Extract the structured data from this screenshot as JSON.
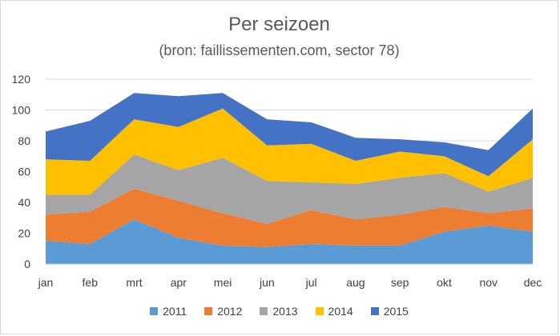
{
  "chart_data": {
    "type": "area",
    "stacked": true,
    "title": "Per seizoen",
    "subtitle": "(bron: faillissementen.com, sector 78)",
    "categories": [
      "jan",
      "feb",
      "mrt",
      "apr",
      "mei",
      "jun",
      "jul",
      "aug",
      "sep",
      "okt",
      "nov",
      "dec"
    ],
    "y_ticks": [
      0,
      20,
      40,
      60,
      80,
      100,
      120
    ],
    "ylim": [
      0,
      120
    ],
    "grid": "horizontal",
    "legend_position": "bottom",
    "series": [
      {
        "name": "2011",
        "color": "#5b9bd5",
        "values": [
          15,
          13,
          29,
          17,
          12,
          11,
          13,
          12,
          12,
          21,
          25,
          21
        ]
      },
      {
        "name": "2012",
        "color": "#ed7d31",
        "values": [
          17,
          21,
          20,
          24,
          21,
          15,
          22,
          17,
          20,
          16,
          8,
          15
        ]
      },
      {
        "name": "2013",
        "color": "#a5a5a5",
        "values": [
          13,
          11,
          22,
          20,
          36,
          28,
          18,
          23,
          24,
          22,
          14,
          20
        ]
      },
      {
        "name": "2014",
        "color": "#ffc000",
        "values": [
          23,
          22,
          23,
          28,
          32,
          23,
          25,
          15,
          17,
          11,
          10,
          25
        ]
      },
      {
        "name": "2015",
        "color": "#4472c4",
        "values": [
          18,
          26,
          17,
          20,
          10,
          17,
          14,
          15,
          8,
          9,
          17,
          20
        ]
      }
    ]
  }
}
